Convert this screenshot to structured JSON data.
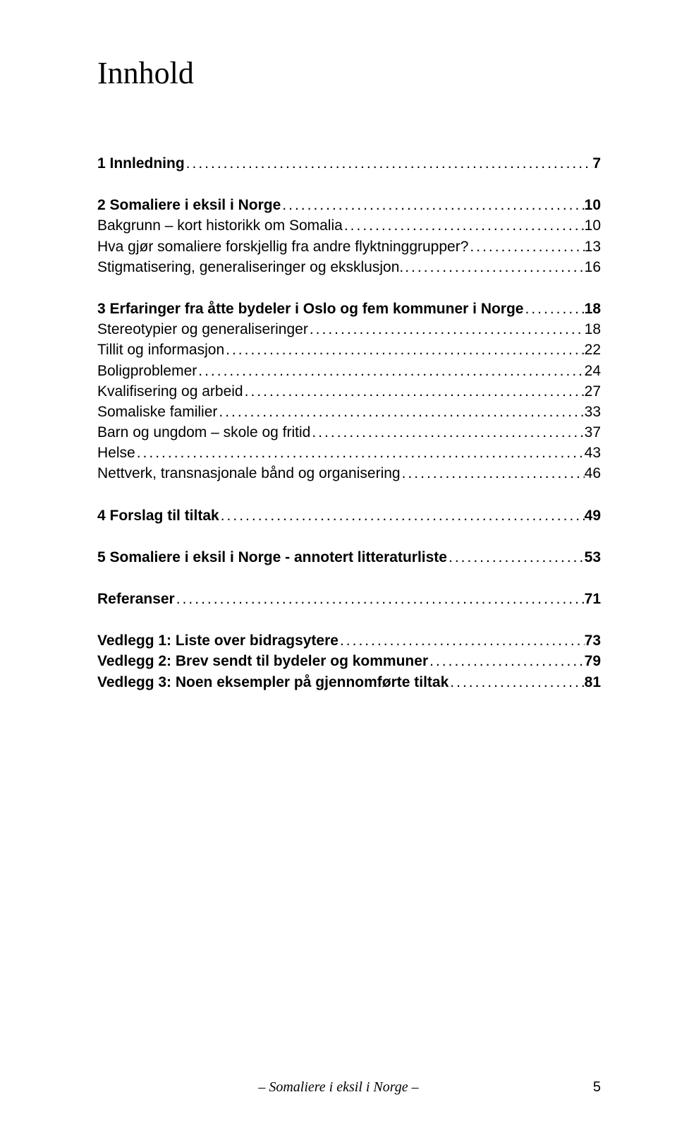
{
  "title": "Innhold",
  "toc": [
    {
      "type": "bold",
      "label": "1  Innledning",
      "page": "7"
    },
    {
      "type": "gap"
    },
    {
      "type": "bold",
      "label": "2  Somaliere i eksil i Norge",
      "page": "10"
    },
    {
      "type": "sub",
      "label": "Bakgrunn – kort historikk om Somalia",
      "page": "10"
    },
    {
      "type": "sub",
      "label": "Hva gjør somaliere forskjellig fra andre flyktninggrupper?",
      "page": "13"
    },
    {
      "type": "sub",
      "label": "Stigmatisering, generaliseringer og eksklusjon.",
      "page": "16"
    },
    {
      "type": "gap"
    },
    {
      "type": "bold",
      "label": "3  Erfaringer fra åtte bydeler i Oslo og fem kommuner i Norge",
      "page": "18"
    },
    {
      "type": "sub",
      "label": "Stereotypier og generaliseringer",
      "page": "18"
    },
    {
      "type": "sub",
      "label": "Tillit og informasjon",
      "page": "22"
    },
    {
      "type": "sub",
      "label": "Boligproblemer",
      "page": "24"
    },
    {
      "type": "sub",
      "label": "Kvalifisering og arbeid",
      "page": "27"
    },
    {
      "type": "sub",
      "label": "Somaliske familier",
      "page": "33"
    },
    {
      "type": "sub",
      "label": "Barn og ungdom – skole og fritid",
      "page": "37"
    },
    {
      "type": "sub",
      "label": "Helse",
      "page": "43"
    },
    {
      "type": "sub",
      "label": "Nettverk, transnasjonale bånd og organisering",
      "page": "46"
    },
    {
      "type": "gap"
    },
    {
      "type": "bold",
      "label": "4  Forslag til tiltak",
      "page": "49"
    },
    {
      "type": "gap"
    },
    {
      "type": "bold",
      "label": "5  Somaliere i eksil i Norge - annotert litteraturliste",
      "page": "53"
    },
    {
      "type": "gap"
    },
    {
      "type": "bold",
      "label": "Referanser",
      "page": "71"
    },
    {
      "type": "gap"
    },
    {
      "type": "bold",
      "label": "Vedlegg 1: Liste over bidragsytere",
      "page": "73"
    },
    {
      "type": "bold",
      "label": "Vedlegg 2: Brev sendt til bydeler og kommuner",
      "page": "79"
    },
    {
      "type": "bold",
      "label": "Vedlegg 3: Noen eksempler på gjennomførte tiltak",
      "page": "81"
    }
  ],
  "footer": {
    "text": "– Somaliere i eksil i Norge –",
    "page_number": "5"
  },
  "colors": {
    "background": "#ffffff",
    "text": "#000000"
  },
  "typography": {
    "title_font": "Times New Roman",
    "title_size_pt": 33,
    "body_font": "Arial",
    "body_size_pt": 16,
    "footer_font": "Times New Roman",
    "footer_size_pt": 15
  }
}
